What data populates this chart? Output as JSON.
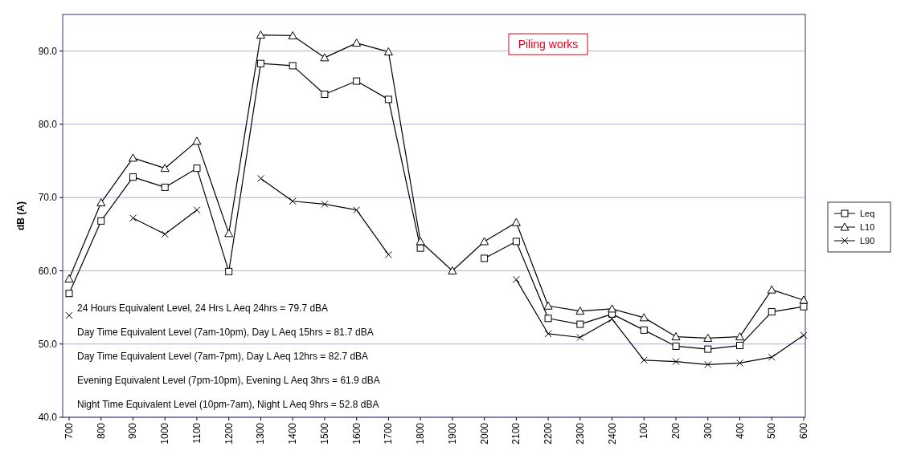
{
  "chart_data": {
    "type": "line",
    "ylabel": "dB (A)",
    "categories": [
      "700",
      "800",
      "900",
      "1000",
      "1100",
      "1200",
      "1300",
      "1400",
      "1500",
      "1600",
      "1700",
      "1800",
      "1900",
      "2000",
      "2100",
      "2200",
      "2300",
      "2400",
      "100",
      "200",
      "300",
      "400",
      "500",
      "600"
    ],
    "series": [
      {
        "name": "Leq",
        "color": "#000000",
        "marker": "square",
        "values": [
          56.9,
          66.8,
          72.8,
          71.4,
          74.0,
          59.9,
          88.3,
          88.0,
          84.1,
          85.9,
          83.4,
          63.1,
          null,
          61.7,
          64.0,
          53.5,
          52.7,
          54.1,
          51.9,
          49.7,
          49.3,
          49.8,
          54.4,
          55.1
        ]
      },
      {
        "name": "L10",
        "color": "#000000",
        "marker": "triangle",
        "values": [
          58.9,
          69.3,
          75.4,
          74.0,
          77.7,
          65.1,
          92.2,
          92.1,
          89.1,
          91.1,
          89.9,
          64.0,
          60.0,
          64.0,
          66.6,
          55.2,
          54.5,
          54.8,
          53.6,
          51.0,
          50.8,
          51.0,
          57.4,
          56.0
        ]
      },
      {
        "name": "L90",
        "color": "#000000",
        "marker": "cross",
        "values": [
          53.9,
          null,
          67.2,
          65.0,
          68.3,
          null,
          72.6,
          69.5,
          69.1,
          68.3,
          62.2,
          null,
          null,
          null,
          58.8,
          51.4,
          50.9,
          53.4,
          47.8,
          47.6,
          47.2,
          47.4,
          48.2,
          51.2
        ]
      }
    ],
    "ylim": [
      40,
      95
    ],
    "yticks": [
      {
        "value": 40,
        "label": "40.0"
      },
      {
        "value": 50,
        "label": "50.0"
      },
      {
        "value": 60,
        "label": "60.0"
      },
      {
        "value": 70,
        "label": "70.0"
      },
      {
        "value": 80,
        "label": "80.0"
      },
      {
        "value": 90,
        "label": "90.0"
      }
    ],
    "grid": "y",
    "legend": "right",
    "annotations": [
      "Piling works",
      "24 Hours Equivalent Level, 24 Hrs L Aeq 24hrs =   79.7 dBA",
      "Day Time Equivalent Level (7am-10pm), Day L Aeq 15hrs =   81.7 dBA",
      "Day Time Equivalent Level (7am-7pm), Day L Aeq 12hrs =   82.7 dBA",
      "Evening Equivalent Level (7pm-10pm), Evening L Aeq 3hrs =   61.9 dBA",
      "Night Time Equivalent Level (10pm-7am), Night L Aeq 9hrs =   52.8 dBA"
    ]
  }
}
